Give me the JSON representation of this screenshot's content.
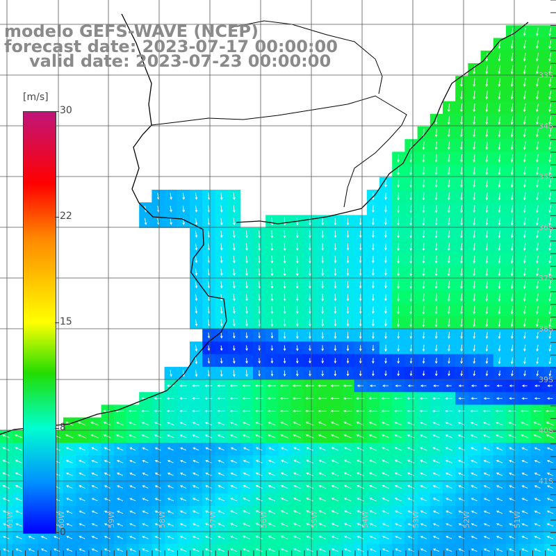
{
  "title": {
    "model": "modelo GEFS-WAVE (NCEP)",
    "forecast": "forecast date: 2023-07-17 00:00:00",
    "valid": "valid date: 2023-07-23 00:00:00"
  },
  "colorbar": {
    "unit": "[m/s]",
    "ticks": [
      "30",
      "22",
      "15",
      "8",
      "0"
    ],
    "ticks_values": [
      30,
      22,
      15,
      8,
      0
    ],
    "colors": [
      "#0000ff",
      "#0090ff",
      "#00ffd0",
      "#22dd00",
      "#ffff00",
      "#ff8800",
      "#ff0000",
      "#c0157a"
    ]
  },
  "grid": {
    "lat_labels": [
      "33S",
      "34S",
      "35S",
      "36S",
      "37S",
      "38S",
      "39S",
      "40S",
      "41S"
    ],
    "lon_labels": [
      "61W",
      "60W",
      "59W",
      "58W",
      "57W",
      "56W",
      "55W",
      "54W",
      "53W",
      "52W",
      "51W"
    ]
  },
  "colors": {
    "land": "#ffffff",
    "coastline": "#000000",
    "gridlines": "#555555",
    "arrows": "#ffffff",
    "title": "#8a8a8a"
  }
}
